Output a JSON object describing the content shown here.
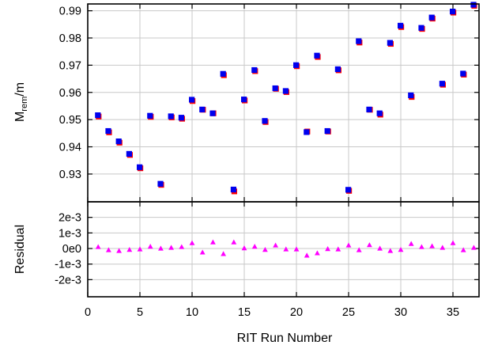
{
  "chart_data": [
    {
      "type": "scatter",
      "title": "",
      "ylabel": {
        "main": "M",
        "sub": "rem",
        "suffix": "/m"
      },
      "xlim": [
        0,
        37.5
      ],
      "ylim": [
        0.9198,
        0.9925
      ],
      "grid": true,
      "x_ticks": [
        "0",
        "5",
        "10",
        "15",
        "20",
        "25",
        "30",
        "35"
      ],
      "y_ticks": [
        "0.93",
        "0.94",
        "0.95",
        "0.96",
        "0.97",
        "0.98",
        "0.99"
      ],
      "series": [
        {
          "marker": "square",
          "color": "#ff0000",
          "x": [
            1,
            2,
            3,
            4,
            5,
            6,
            7,
            8,
            9,
            10,
            11,
            12,
            13,
            14,
            15,
            16,
            17,
            18,
            19,
            20,
            21,
            22,
            23,
            24,
            25,
            26,
            27,
            28,
            29,
            30,
            31,
            32,
            33,
            34,
            35,
            36,
            37
          ],
          "y": [
            0.9513,
            0.9455,
            0.9417,
            0.9372,
            0.9323,
            0.9512,
            0.9262,
            0.951,
            0.9505,
            0.957,
            0.9538,
            0.9525,
            0.9665,
            0.9238,
            0.9572,
            0.968,
            0.9493,
            0.9615,
            0.9603,
            0.9698,
            0.9458,
            0.9732,
            0.9458,
            0.9683,
            0.924,
            0.9785,
            0.9538,
            0.952,
            0.978,
            0.9842,
            0.9585,
            0.9835,
            0.9873,
            0.963,
            0.9895,
            0.9667,
            0.992
          ]
        },
        {
          "marker": "square",
          "color": "#0000ee",
          "x": [
            1,
            2,
            3,
            4,
            5,
            6,
            7,
            8,
            9,
            10,
            11,
            12,
            13,
            14,
            15,
            16,
            17,
            18,
            19,
            20,
            21,
            22,
            23,
            24,
            25,
            26,
            27,
            28,
            29,
            30,
            31,
            32,
            33,
            34,
            35,
            36,
            37
          ],
          "y": [
            0.9515,
            0.9457,
            0.9419,
            0.9373,
            0.9324,
            0.9513,
            0.9263,
            0.9511,
            0.9506,
            0.9572,
            0.9536,
            0.9522,
            0.9667,
            0.9242,
            0.9573,
            0.9681,
            0.9494,
            0.9614,
            0.9604,
            0.9699,
            0.9453,
            0.9734,
            0.9457,
            0.9684,
            0.9241,
            0.9787,
            0.9536,
            0.9522,
            0.9781,
            0.9844,
            0.9588,
            0.9836,
            0.9874,
            0.9631,
            0.9896,
            0.9668,
            0.9921
          ]
        }
      ]
    },
    {
      "type": "scatter",
      "title": "",
      "xlabel": "RIT Run Number",
      "ylabel": "Residual",
      "xlim": [
        0,
        37.5
      ],
      "ylim": [
        -0.0031,
        0.003
      ],
      "grid": true,
      "x_ticks": [
        "0",
        "5",
        "10",
        "15",
        "20",
        "25",
        "30",
        "35"
      ],
      "y_ticks": [
        "2e-3",
        "1e-3",
        "0e0",
        "-1e-3",
        "-2e-3"
      ],
      "y_tick_values": [
        0.002,
        0.001,
        0,
        -0.001,
        -0.002
      ],
      "series": [
        {
          "marker": "triangle",
          "color": "#ff00ff",
          "x": [
            1,
            2,
            3,
            4,
            5,
            6,
            7,
            8,
            9,
            10,
            11,
            12,
            13,
            14,
            15,
            16,
            17,
            18,
            19,
            20,
            21,
            22,
            23,
            24,
            25,
            26,
            27,
            28,
            29,
            30,
            31,
            32,
            33,
            34,
            35,
            36,
            37
          ],
          "y": [
            0.0001,
            -0.0001,
            -0.00015,
            -8e-05,
            -5e-05,
            0.00012,
            0.0,
            5e-05,
            0.0001,
            0.00035,
            -0.00025,
            0.0004,
            -0.00035,
            0.0004,
            2e-05,
            0.00012,
            -8e-05,
            0.0002,
            -5e-05,
            -5e-05,
            -0.00045,
            -0.0003,
            -3e-05,
            -5e-05,
            0.0002,
            -0.0001,
            0.00022,
            0.0,
            -0.00015,
            -8e-05,
            0.0003,
            0.0001,
            0.00015,
            5e-05,
            0.00035,
            -0.0001,
            5e-05
          ]
        }
      ]
    }
  ]
}
